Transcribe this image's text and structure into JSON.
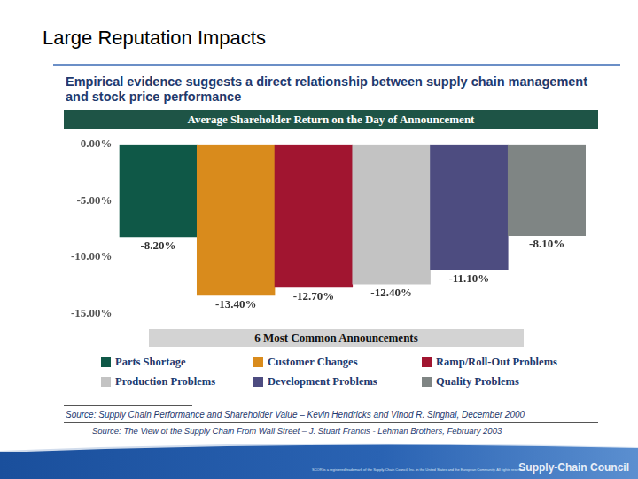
{
  "header": {
    "title": "Large Reputation Impacts",
    "subtitle": "Empirical evidence suggests a direct relationship between supply chain management and stock price performance"
  },
  "chart_data": {
    "type": "bar",
    "title": "Average Shareholder Return on the Day of Announcement",
    "x_label": "6 Most Common Announcements",
    "categories": [
      "Parts Shortage",
      "Customer Changes",
      "Ramp/Roll-Out Problems",
      "Production Problems",
      "Development Problems",
      "Quality Problems"
    ],
    "values": [
      -8.2,
      -13.4,
      -12.7,
      -12.4,
      -11.1,
      -8.1
    ],
    "value_labels": [
      "-8.20%",
      "-13.40%",
      "-12.70%",
      "-12.40%",
      "-11.10%",
      "-8.10%"
    ],
    "colors": [
      "#0f5847",
      "#d98b1c",
      "#a11530",
      "#c3c3c3",
      "#4d4c80",
      "#7f8584"
    ],
    "ylim": [
      -15,
      0
    ],
    "yticks": [
      {
        "value": 0,
        "label": "0.00%"
      },
      {
        "value": -5,
        "label": "-5.00%"
      },
      {
        "value": -10,
        "label": "-10.00%"
      },
      {
        "value": -15,
        "label": "-15.00%"
      }
    ],
    "grid": false,
    "data_labels": true,
    "tick_labels": "y",
    "legend": "bottom"
  },
  "sources": [
    "Source:  Supply Chain Performance and Shareholder Value – Kevin Hendricks and Vinod R. Singhal, December 2000",
    "Source: The View of the Supply Chain From Wall Street – J. Stuart Francis - Lehman Brothers, February 2003"
  ],
  "footer": {
    "note": "SCOR is a registered trademark of the Supply-Chain Council, Inc. in the United States and the European Community. All rights reserved.",
    "logo": "Supply-Chain Council"
  }
}
